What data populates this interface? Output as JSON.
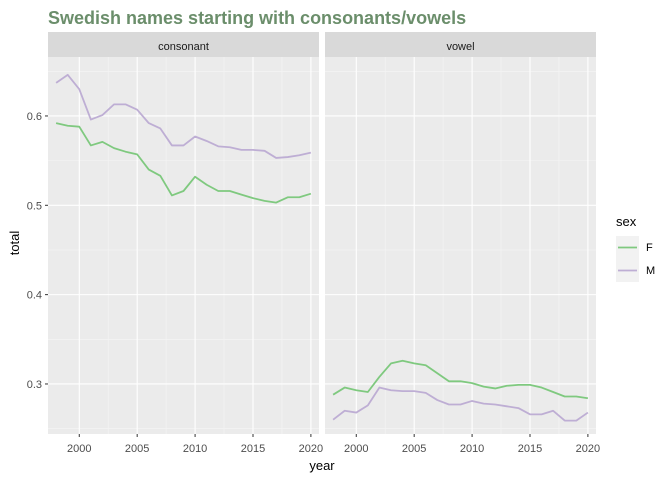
{
  "chart_data": {
    "type": "line",
    "title": "Swedish names starting with consonants/vowels",
    "xlabel": "year",
    "ylabel": "total",
    "xlim": [
      1997.3,
      2020.7
    ],
    "ylim": [
      0.244,
      0.666
    ],
    "xticks": [
      2000,
      2005,
      2010,
      2015,
      2020
    ],
    "yticks": [
      0.3,
      0.4,
      0.5,
      0.6
    ],
    "ytick_labels": [
      "0.3",
      "0.4",
      "0.5",
      "0.6"
    ],
    "grid": true,
    "legend": {
      "title": "sex",
      "position": "right",
      "entries": [
        {
          "name": "F",
          "color": "#7fc97f"
        },
        {
          "name": "M",
          "color": "#beaed4"
        }
      ]
    },
    "x": [
      1998,
      1999,
      2000,
      2001,
      2002,
      2003,
      2004,
      2005,
      2006,
      2007,
      2008,
      2009,
      2010,
      2011,
      2012,
      2013,
      2014,
      2015,
      2016,
      2017,
      2018,
      2019,
      2020
    ],
    "panels": [
      {
        "label": "consonant",
        "series": [
          {
            "name": "F",
            "color": "#7fc97f",
            "values": [
              0.592,
              0.589,
              0.588,
              0.567,
              0.571,
              0.564,
              0.56,
              0.557,
              0.54,
              0.533,
              0.511,
              0.516,
              0.532,
              0.523,
              0.516,
              0.516,
              0.512,
              0.508,
              0.505,
              0.503,
              0.509,
              0.509,
              0.513
            ]
          },
          {
            "name": "M",
            "color": "#beaed4",
            "values": [
              0.637,
              0.646,
              0.63,
              0.596,
              0.601,
              0.613,
              0.613,
              0.607,
              0.592,
              0.586,
              0.567,
              0.567,
              0.577,
              0.572,
              0.566,
              0.565,
              0.562,
              0.562,
              0.561,
              0.553,
              0.554,
              0.556,
              0.559
            ]
          }
        ]
      },
      {
        "label": "vowel",
        "series": [
          {
            "name": "F",
            "color": "#7fc97f",
            "values": [
              0.288,
              0.296,
              0.293,
              0.291,
              0.308,
              0.323,
              0.326,
              0.323,
              0.321,
              0.312,
              0.303,
              0.303,
              0.301,
              0.297,
              0.295,
              0.298,
              0.299,
              0.299,
              0.296,
              0.291,
              0.286,
              0.286,
              0.284
            ]
          },
          {
            "name": "M",
            "color": "#beaed4",
            "values": [
              0.26,
              0.27,
              0.268,
              0.276,
              0.296,
              0.293,
              0.292,
              0.292,
              0.29,
              0.282,
              0.277,
              0.277,
              0.281,
              0.278,
              0.277,
              0.275,
              0.273,
              0.266,
              0.266,
              0.27,
              0.259,
              0.259,
              0.268
            ]
          }
        ]
      }
    ]
  }
}
